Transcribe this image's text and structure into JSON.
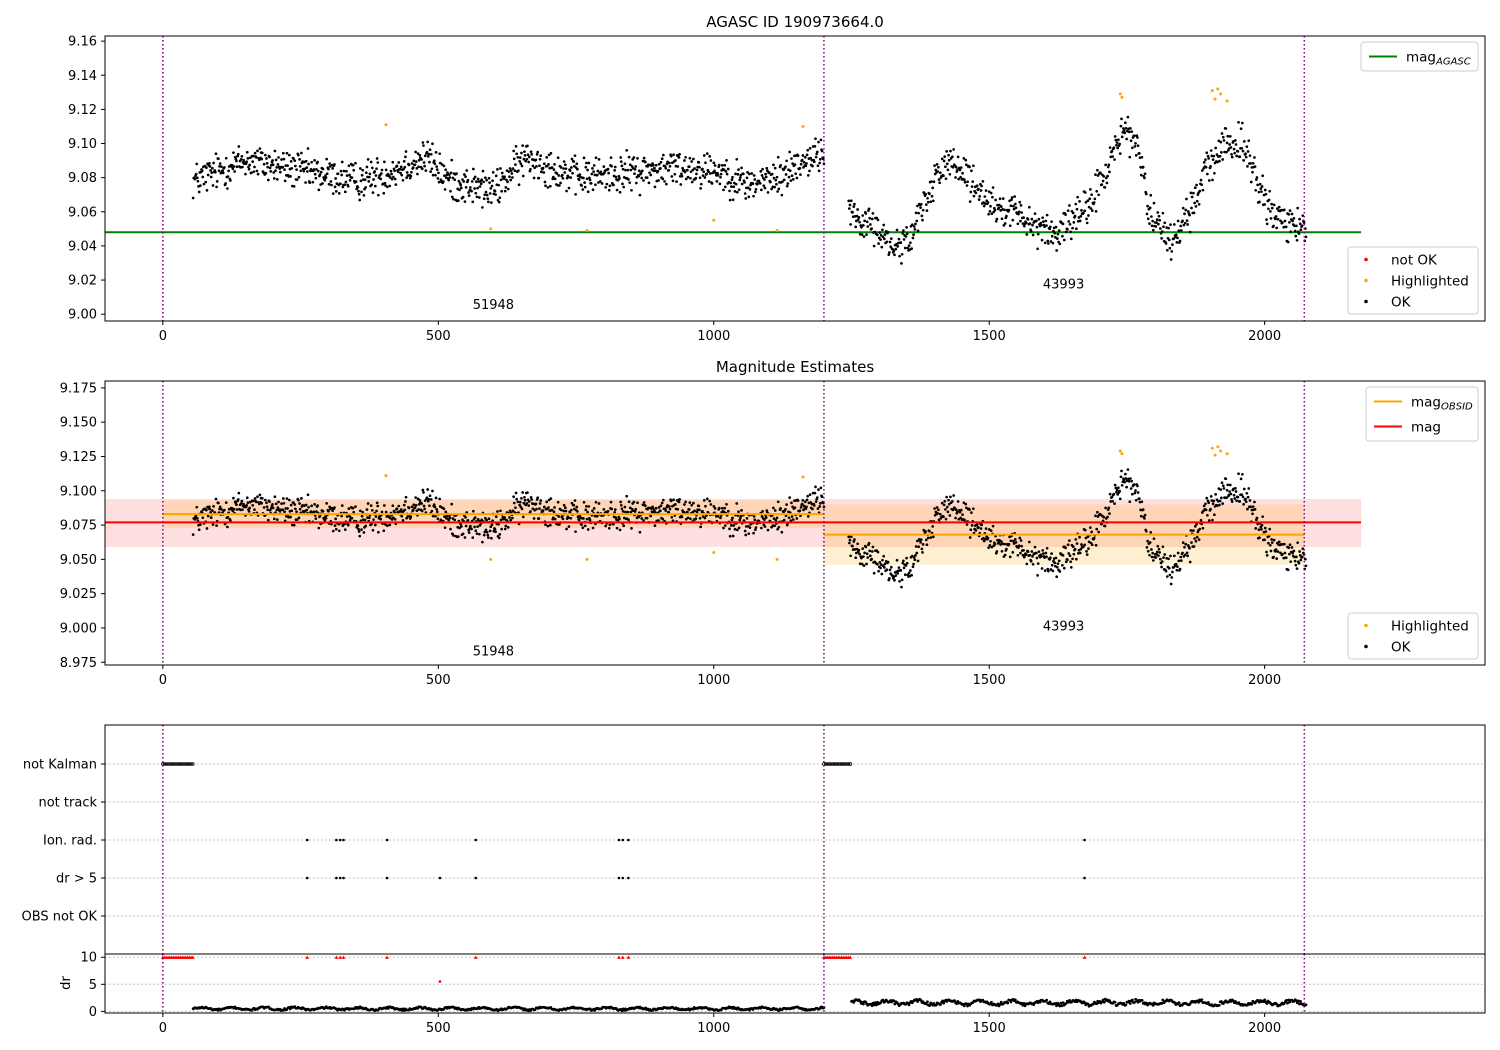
{
  "chart_data": [
    {
      "type": "scatter",
      "title": "AGASC ID 190973664.0",
      "xlim": [
        -105,
        2400
      ],
      "ylim": [
        8.996,
        9.163
      ],
      "xticks": [
        0,
        500,
        1000,
        1500,
        2000
      ],
      "yticks": [
        9.0,
        9.02,
        9.04,
        9.06,
        9.08,
        9.1,
        9.12,
        9.14,
        9.16
      ],
      "ytick_labels": [
        "9.00",
        "9.02",
        "9.04",
        "9.06",
        "9.08",
        "9.10",
        "9.12",
        "9.14",
        "9.16"
      ],
      "obsid_boundaries": [
        0,
        1200,
        2072
      ],
      "obsid_labels": [
        {
          "text": "51948",
          "x": 600,
          "y": 9.003
        },
        {
          "text": "43993",
          "x": 1635,
          "y": 9.015
        }
      ],
      "lines": [
        {
          "name": "mag_AGASC",
          "label_main": "mag",
          "label_sub": "AGASC",
          "color": "#008000",
          "x": [
            -105,
            2175
          ],
          "y": [
            9.048,
            9.048
          ]
        }
      ],
      "legend_top": [
        {
          "label_main": "mag",
          "label_sub": "AGASC",
          "color": "#008000",
          "kind": "line"
        }
      ],
      "legend_bottom": [
        {
          "label": "not OK",
          "color": "#ff0000",
          "kind": "dot"
        },
        {
          "label": "Highlighted",
          "color": "#ffa500",
          "kind": "dot"
        },
        {
          "label": "OK",
          "color": "#000000",
          "kind": "dot"
        }
      ],
      "highlighted_points": [
        [
          405,
          9.111
        ],
        [
          595,
          9.05
        ],
        [
          770,
          9.049
        ],
        [
          1000,
          9.055
        ],
        [
          1115,
          9.049
        ],
        [
          1162,
          9.11
        ],
        [
          1738,
          9.129
        ],
        [
          1741,
          9.127
        ],
        [
          1905,
          9.131
        ],
        [
          1910,
          9.126
        ],
        [
          1915,
          9.132
        ],
        [
          1920,
          9.129
        ],
        [
          1932,
          9.125
        ]
      ],
      "segments": [
        {
          "x_start": 55,
          "x_end": 1200,
          "knots": [
            [
              55,
              9.078
            ],
            [
              150,
              9.09
            ],
            [
              250,
              9.084
            ],
            [
              350,
              9.078
            ],
            [
              400,
              9.082
            ],
            [
              480,
              9.092
            ],
            [
              520,
              9.078
            ],
            [
              600,
              9.072
            ],
            [
              660,
              9.092
            ],
            [
              750,
              9.08
            ],
            [
              850,
              9.083
            ],
            [
              950,
              9.086
            ],
            [
              1010,
              9.084
            ],
            [
              1060,
              9.076
            ],
            [
              1120,
              9.08
            ],
            [
              1160,
              9.09
            ],
            [
              1200,
              9.094
            ]
          ],
          "noise": 0.009,
          "count": 1050
        },
        {
          "x_start": 1245,
          "x_end": 2075,
          "knots": [
            [
              1245,
              9.063
            ],
            [
              1290,
              9.05
            ],
            [
              1330,
              9.04
            ],
            [
              1360,
              9.045
            ],
            [
              1380,
              9.065
            ],
            [
              1420,
              9.09
            ],
            [
              1470,
              9.077
            ],
            [
              1500,
              9.062
            ],
            [
              1560,
              9.058
            ],
            [
              1620,
              9.046
            ],
            [
              1680,
              9.062
            ],
            [
              1720,
              9.09
            ],
            [
              1745,
              9.108
            ],
            [
              1770,
              9.1
            ],
            [
              1790,
              9.06
            ],
            [
              1830,
              9.042
            ],
            [
              1860,
              9.056
            ],
            [
              1890,
              9.082
            ],
            [
              1930,
              9.1
            ],
            [
              1960,
              9.1
            ],
            [
              1990,
              9.075
            ],
            [
              2010,
              9.06
            ],
            [
              2040,
              9.053
            ],
            [
              2075,
              9.05
            ]
          ],
          "noise": 0.0085,
          "count": 720
        }
      ]
    },
    {
      "type": "scatter",
      "title": "Magnitude Estimates",
      "xlim": [
        -105,
        2400
      ],
      "ylim": [
        8.973,
        9.18
      ],
      "xticks": [
        0,
        500,
        1000,
        1500,
        2000
      ],
      "yticks": [
        8.975,
        9.0,
        9.025,
        9.05,
        9.075,
        9.1,
        9.125,
        9.15,
        9.175
      ],
      "ytick_labels": [
        "8.975",
        "9.000",
        "9.025",
        "9.050",
        "9.075",
        "9.100",
        "9.125",
        "9.150",
        "9.175"
      ],
      "obsid_boundaries": [
        0,
        1200,
        2072
      ],
      "obsid_labels": [
        {
          "text": "51948",
          "x": 600,
          "y": 8.98
        },
        {
          "text": "43993",
          "x": 1635,
          "y": 8.998
        }
      ],
      "bands": [
        {
          "name": "mag_std",
          "color": "#ff0000",
          "opacity": 0.12,
          "x": [
            -105,
            2175
          ],
          "y": [
            9.059,
            9.094
          ]
        },
        {
          "name": "obsid_std_1",
          "color": "#ffa500",
          "opacity": 0.18,
          "x": [
            0,
            1200
          ],
          "y": [
            9.073,
            9.093
          ]
        },
        {
          "name": "obsid_std_2",
          "color": "#ffa500",
          "opacity": 0.18,
          "x": [
            1200,
            2072
          ],
          "y": [
            9.046,
            9.09
          ]
        }
      ],
      "lines": [
        {
          "name": "mag_obsid_1",
          "color": "#ffa500",
          "x": [
            0,
            1200
          ],
          "y": [
            9.083,
            9.083
          ]
        },
        {
          "name": "mag_obsid_2",
          "color": "#ffa500",
          "x": [
            1200,
            2072
          ],
          "y": [
            9.068,
            9.068
          ]
        },
        {
          "name": "mag",
          "color": "#ff0000",
          "x": [
            -105,
            2175
          ],
          "y": [
            9.077,
            9.077
          ]
        }
      ],
      "legend_top": [
        {
          "label_main": "mag",
          "label_sub": "OBSID",
          "color": "#ffa500",
          "kind": "line"
        },
        {
          "label_main": "mag",
          "label_sub": "",
          "color": "#ff0000",
          "kind": "line"
        }
      ],
      "legend_bottom": [
        {
          "label": "Highlighted",
          "color": "#ffa500",
          "kind": "dot"
        },
        {
          "label": "OK",
          "color": "#000000",
          "kind": "dot"
        }
      ],
      "highlighted_points": [
        [
          405,
          9.111
        ],
        [
          595,
          9.05
        ],
        [
          770,
          9.05
        ],
        [
          1000,
          9.055
        ],
        [
          1115,
          9.05
        ],
        [
          1162,
          9.11
        ],
        [
          1738,
          9.129
        ],
        [
          1741,
          9.127
        ],
        [
          1905,
          9.131
        ],
        [
          1910,
          9.126
        ],
        [
          1915,
          9.132
        ],
        [
          1920,
          9.129
        ],
        [
          1932,
          9.127
        ]
      ],
      "segments": [
        {
          "x_start": 55,
          "x_end": 1200,
          "knots": [
            [
              55,
              9.078
            ],
            [
              150,
              9.09
            ],
            [
              250,
              9.084
            ],
            [
              350,
              9.078
            ],
            [
              400,
              9.082
            ],
            [
              480,
              9.092
            ],
            [
              520,
              9.078
            ],
            [
              600,
              9.072
            ],
            [
              660,
              9.092
            ],
            [
              750,
              9.08
            ],
            [
              850,
              9.083
            ],
            [
              950,
              9.086
            ],
            [
              1010,
              9.084
            ],
            [
              1060,
              9.076
            ],
            [
              1120,
              9.08
            ],
            [
              1160,
              9.09
            ],
            [
              1200,
              9.094
            ]
          ],
          "noise": 0.009,
          "count": 1050
        },
        {
          "x_start": 1245,
          "x_end": 2075,
          "knots": [
            [
              1245,
              9.063
            ],
            [
              1290,
              9.05
            ],
            [
              1330,
              9.04
            ],
            [
              1360,
              9.045
            ],
            [
              1380,
              9.065
            ],
            [
              1420,
              9.09
            ],
            [
              1470,
              9.077
            ],
            [
              1500,
              9.062
            ],
            [
              1560,
              9.058
            ],
            [
              1620,
              9.046
            ],
            [
              1680,
              9.062
            ],
            [
              1720,
              9.09
            ],
            [
              1745,
              9.108
            ],
            [
              1770,
              9.1
            ],
            [
              1790,
              9.06
            ],
            [
              1830,
              9.042
            ],
            [
              1860,
              9.056
            ],
            [
              1890,
              9.082
            ],
            [
              1930,
              9.1
            ],
            [
              1960,
              9.1
            ],
            [
              1990,
              9.075
            ],
            [
              2010,
              9.06
            ],
            [
              2040,
              9.053
            ],
            [
              2075,
              9.05
            ]
          ],
          "noise": 0.0085,
          "count": 720
        }
      ]
    },
    {
      "type": "scatter",
      "title": "",
      "xlim": [
        -105,
        2400
      ],
      "categories": [
        "not Kalman",
        "not track",
        "Ion. rad.",
        "dr > 5",
        "OBS not OK"
      ],
      "obsid_boundaries": [
        0,
        1200,
        2072
      ],
      "flags": {
        "not Kalman": [
          [
            0,
            55
          ],
          [
            1200,
            1250
          ]
        ],
        "not track": [],
        "Ion. rad.": [
          262,
          315,
          322,
          328,
          407,
          568,
          828,
          835,
          845,
          1673
        ],
        "dr > 5": [
          262,
          315,
          322,
          328,
          407,
          503,
          568,
          828,
          835,
          845,
          1673
        ],
        "OBS not OK": []
      }
    },
    {
      "type": "scatter",
      "title": "",
      "ylabel": "dr",
      "xlim": [
        -105,
        2400
      ],
      "ylim": [
        -0.3,
        10.6
      ],
      "xticks": [
        0,
        500,
        1000,
        1500,
        2000
      ],
      "yticks": [
        0,
        5,
        10
      ],
      "ytick_labels": [
        "0",
        "5",
        "10"
      ],
      "obsid_boundaries": [
        0,
        1200,
        2072
      ],
      "capped_points": {
        "value": 10,
        "ranges": [
          [
            0,
            55
          ],
          [
            1200,
            1250
          ]
        ],
        "singles": [
          262,
          315,
          322,
          328,
          407,
          568,
          828,
          835,
          845,
          1673
        ]
      },
      "outliers": [
        [
          503,
          5.5
        ]
      ],
      "segments": [
        {
          "x_start": 55,
          "x_end": 1200,
          "level": 0.5,
          "amplitude": 0.35,
          "count": 560
        },
        {
          "x_start": 1250,
          "x_end": 2075,
          "level": 1.6,
          "amplitude": 0.6,
          "count": 420
        }
      ]
    }
  ]
}
